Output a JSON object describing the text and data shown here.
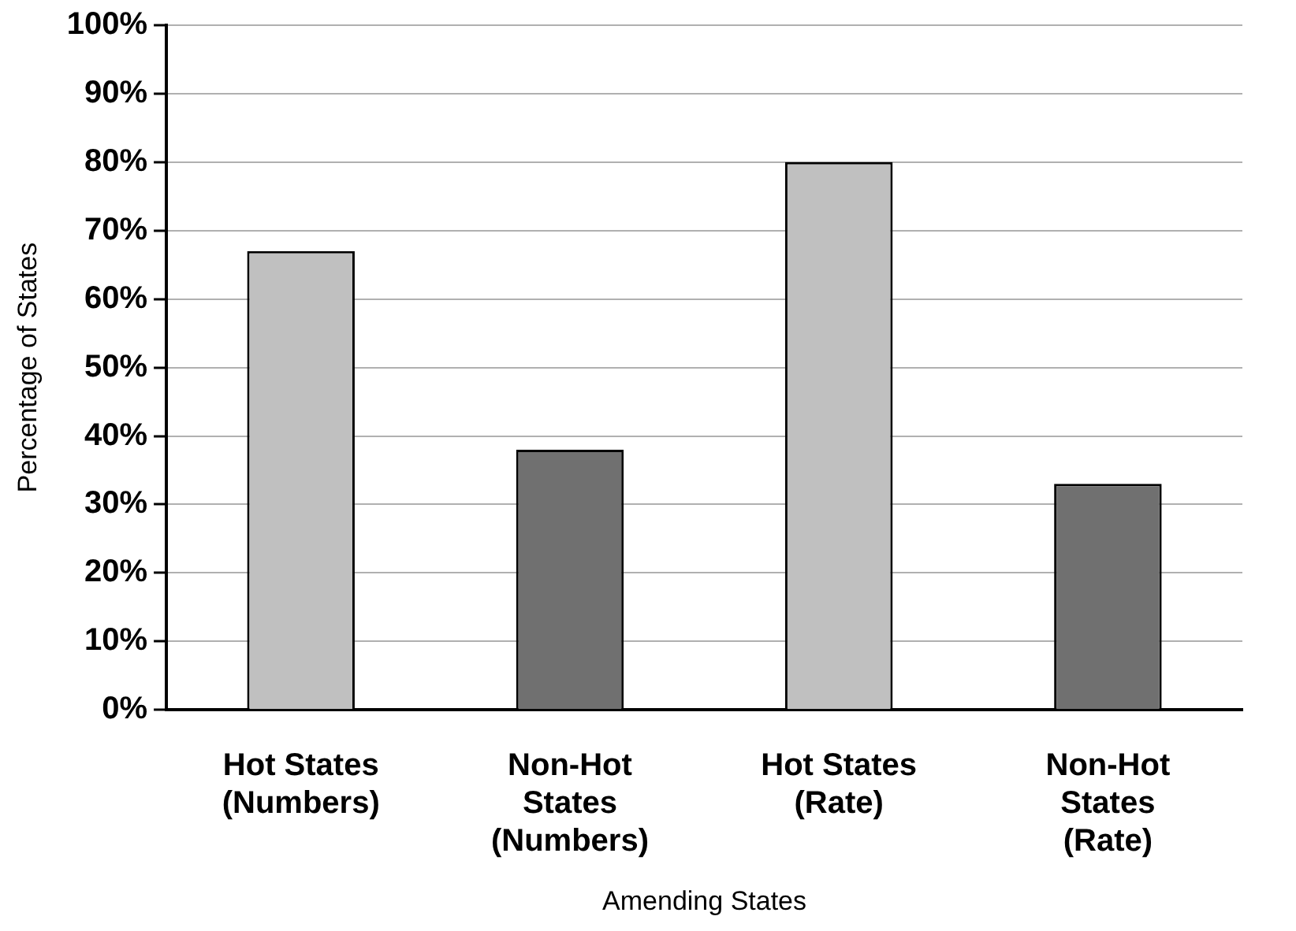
{
  "chart_data": {
    "type": "bar",
    "xlabel": "Amending States",
    "ylabel": "Percentage of States",
    "categories": [
      "Hot States (Numbers)",
      "Non-Hot States (Numbers)",
      "Hot States (Rate)",
      "Non-Hot States (Rate)"
    ],
    "values": [
      67,
      38,
      80,
      33
    ],
    "colors": [
      "#c0c0c0",
      "#707070",
      "#c0c0c0",
      "#707070"
    ],
    "ylim": [
      0,
      100
    ],
    "yticks": [
      {
        "value": 0,
        "label": "0%"
      },
      {
        "value": 10,
        "label": "10%"
      },
      {
        "value": 20,
        "label": "20%"
      },
      {
        "value": 30,
        "label": "30%"
      },
      {
        "value": 40,
        "label": "40%"
      },
      {
        "value": 50,
        "label": "50%"
      },
      {
        "value": 60,
        "label": "60%"
      },
      {
        "value": 70,
        "label": "70%"
      },
      {
        "value": 80,
        "label": "80%"
      },
      {
        "value": 90,
        "label": "90%"
      },
      {
        "value": 100,
        "label": "100%"
      }
    ],
    "grid": "y",
    "legend": false
  }
}
